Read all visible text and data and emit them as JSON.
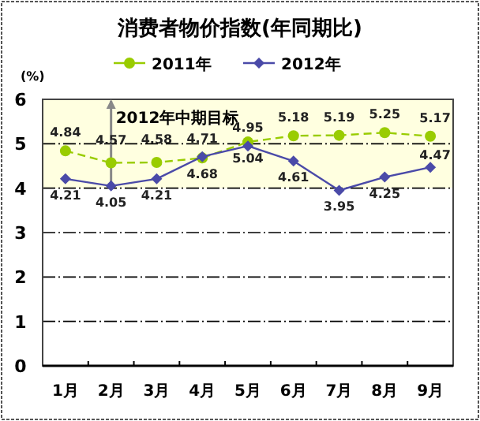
{
  "chart_data": {
    "type": "line",
    "title": "消费者物价指数(年同期比)",
    "ylabel": "(%)",
    "categories": [
      "1月",
      "2月",
      "3月",
      "4月",
      "5月",
      "6月",
      "7月",
      "8月",
      "9月"
    ],
    "series": [
      {
        "name": "2011年",
        "color": "#99cc00",
        "marker": "circle",
        "line_style": "dashed",
        "values": [
          4.84,
          4.57,
          4.58,
          4.68,
          5.04,
          5.18,
          5.19,
          5.25,
          5.17
        ]
      },
      {
        "name": "2012年",
        "color": "#4a4aa8",
        "marker": "diamond",
        "line_style": "solid",
        "values": [
          4.21,
          4.05,
          4.21,
          4.71,
          4.95,
          4.61,
          3.95,
          4.25,
          4.47
        ]
      }
    ],
    "data_labels": true,
    "ylim": [
      0,
      6
    ],
    "yticks": [
      0,
      1,
      2,
      3,
      4,
      5,
      6
    ],
    "grid": "y",
    "legend": "top",
    "bands": [
      {
        "axis": "y",
        "from": 4,
        "to": 6,
        "color": "#ffffe0"
      }
    ],
    "annotations": [
      {
        "text": "2012年中期目标",
        "x": "2月",
        "y": 6
      }
    ]
  }
}
